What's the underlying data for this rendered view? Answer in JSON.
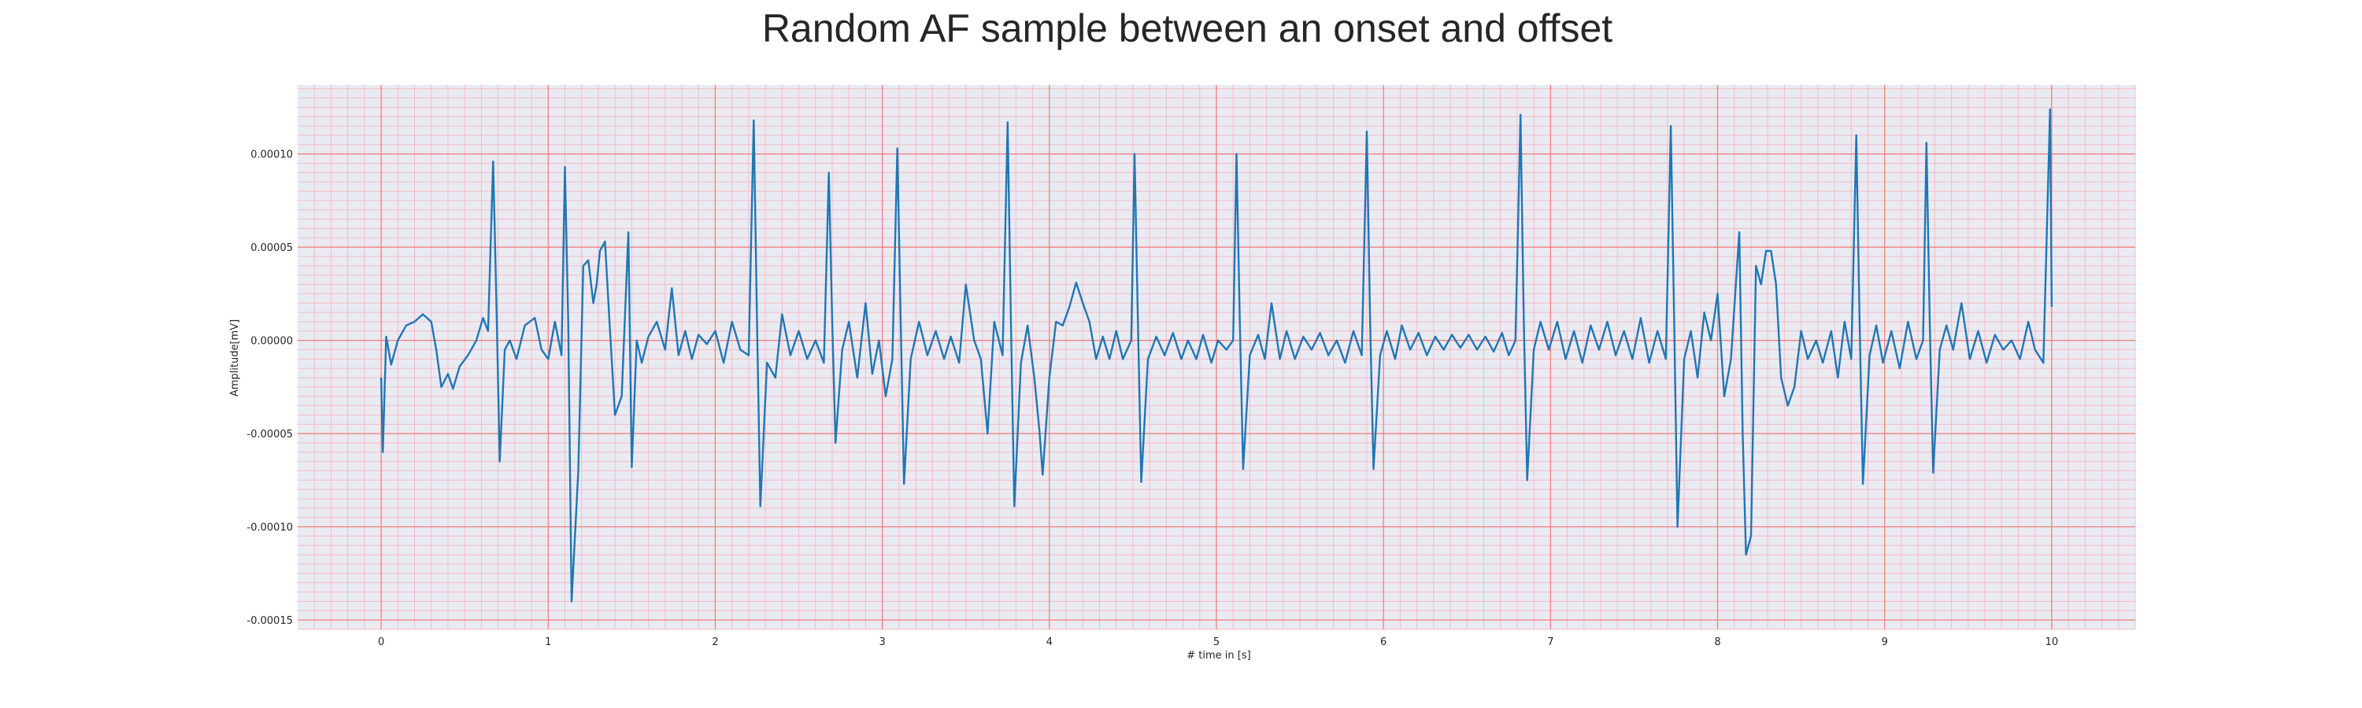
{
  "chart_data": {
    "type": "line",
    "title": "Random AF sample between an onset and offset",
    "xlabel": "# time in [s]",
    "ylabel": "Amplitude[mV]",
    "xlim": [
      -0.5,
      10.5
    ],
    "ylim": [
      -0.000155,
      0.000137
    ],
    "x_ticks": [
      0,
      1,
      2,
      3,
      4,
      5,
      6,
      7,
      8,
      9,
      10
    ],
    "y_ticks": [
      -0.00015,
      -0.0001,
      -5e-05,
      0.0,
      5e-05,
      0.0001
    ],
    "x_tick_labels": [
      "0",
      "1",
      "2",
      "3",
      "4",
      "5",
      "6",
      "7",
      "8",
      "9",
      "10"
    ],
    "y_tick_labels": [
      "-0.00015",
      "-0.00010",
      "-0.00005",
      "0.00000",
      "0.00005",
      "0.00010"
    ],
    "grid": true,
    "colors": {
      "background": "#eaeaf2",
      "major_grid": "#f08080",
      "minor_grid": "#f4bcc6",
      "line": "#1f77b4"
    },
    "series": [
      {
        "points": [
          [
            0.0,
            -2e-05
          ],
          [
            0.01,
            -6e-05
          ],
          [
            0.03,
            2e-06
          ],
          [
            0.06,
            -1.3e-05
          ],
          [
            0.1,
            0.0
          ],
          [
            0.15,
            8e-06
          ],
          [
            0.2,
            1e-05
          ],
          [
            0.25,
            1.4e-05
          ],
          [
            0.3,
            1e-05
          ],
          [
            0.33,
            -5e-06
          ],
          [
            0.36,
            -2.5e-05
          ],
          [
            0.4,
            -1.8e-05
          ],
          [
            0.43,
            -2.6e-05
          ],
          [
            0.47,
            -1.4e-05
          ],
          [
            0.52,
            -8e-06
          ],
          [
            0.57,
            0.0
          ],
          [
            0.61,
            1.2e-05
          ],
          [
            0.64,
            5e-06
          ],
          [
            0.67,
            9.6e-05
          ],
          [
            0.69,
            2e-05
          ],
          [
            0.71,
            -6.5e-05
          ],
          [
            0.74,
            -5e-06
          ],
          [
            0.77,
            0.0
          ],
          [
            0.81,
            -1e-05
          ],
          [
            0.86,
            8e-06
          ],
          [
            0.92,
            1.2e-05
          ],
          [
            0.96,
            -5e-06
          ],
          [
            1.0,
            -1e-05
          ],
          [
            1.04,
            1e-05
          ],
          [
            1.08,
            -8e-06
          ],
          [
            1.1,
            9.3e-05
          ],
          [
            1.12,
            1e-05
          ],
          [
            1.14,
            -0.00014
          ],
          [
            1.18,
            -7e-05
          ],
          [
            1.21,
            4e-05
          ],
          [
            1.24,
            4.3e-05
          ],
          [
            1.27,
            2e-05
          ],
          [
            1.29,
            3e-05
          ],
          [
            1.31,
            4.8e-05
          ],
          [
            1.34,
            5.3e-05
          ],
          [
            1.37,
            5e-06
          ],
          [
            1.4,
            -4e-05
          ],
          [
            1.44,
            -3e-05
          ],
          [
            1.48,
            5.8e-05
          ],
          [
            1.5,
            -6.8e-05
          ],
          [
            1.53,
            0.0
          ],
          [
            1.56,
            -1.2e-05
          ],
          [
            1.6,
            2e-06
          ],
          [
            1.65,
            1e-05
          ],
          [
            1.7,
            -5e-06
          ],
          [
            1.74,
            2.8e-05
          ],
          [
            1.78,
            -8e-06
          ],
          [
            1.82,
            5e-06
          ],
          [
            1.86,
            -1e-05
          ],
          [
            1.9,
            3e-06
          ],
          [
            1.95,
            -2e-06
          ],
          [
            2.0,
            5e-06
          ],
          [
            2.05,
            -1.2e-05
          ],
          [
            2.1,
            1e-05
          ],
          [
            2.15,
            -5e-06
          ],
          [
            2.2,
            -8e-06
          ],
          [
            2.23,
            0.000118
          ],
          [
            2.25,
            1e-05
          ],
          [
            2.27,
            -8.9e-05
          ],
          [
            2.31,
            -1.2e-05
          ],
          [
            2.36,
            -2e-05
          ],
          [
            2.4,
            1.4e-05
          ],
          [
            2.45,
            -8e-06
          ],
          [
            2.5,
            5e-06
          ],
          [
            2.55,
            -1e-05
          ],
          [
            2.6,
            0.0
          ],
          [
            2.65,
            -1.2e-05
          ],
          [
            2.68,
            9e-05
          ],
          [
            2.7,
            1e-05
          ],
          [
            2.72,
            -5.5e-05
          ],
          [
            2.76,
            -5e-06
          ],
          [
            2.8,
            1e-05
          ],
          [
            2.85,
            -2e-05
          ],
          [
            2.9,
            2e-05
          ],
          [
            2.94,
            -1.8e-05
          ],
          [
            2.98,
            0.0
          ],
          [
            3.02,
            -3e-05
          ],
          [
            3.06,
            -1e-05
          ],
          [
            3.09,
            0.000103
          ],
          [
            3.11,
            1e-05
          ],
          [
            3.13,
            -7.7e-05
          ],
          [
            3.17,
            -1e-05
          ],
          [
            3.22,
            1e-05
          ],
          [
            3.27,
            -8e-06
          ],
          [
            3.32,
            5e-06
          ],
          [
            3.37,
            -1e-05
          ],
          [
            3.41,
            2e-06
          ],
          [
            3.46,
            -1.2e-05
          ],
          [
            3.5,
            3e-05
          ],
          [
            3.55,
            0.0
          ],
          [
            3.59,
            -1e-05
          ],
          [
            3.63,
            -5e-05
          ],
          [
            3.67,
            1e-05
          ],
          [
            3.72,
            -8e-06
          ],
          [
            3.75,
            0.000117
          ],
          [
            3.77,
            1e-05
          ],
          [
            3.79,
            -8.9e-05
          ],
          [
            3.83,
            -1.2e-05
          ],
          [
            3.87,
            8e-06
          ],
          [
            3.91,
            -2e-05
          ],
          [
            3.94,
            -4.8e-05
          ],
          [
            3.96,
            -7.2e-05
          ],
          [
            4.0,
            -2e-05
          ],
          [
            4.04,
            1e-05
          ],
          [
            4.08,
            8e-06
          ],
          [
            4.12,
            1.8e-05
          ],
          [
            4.16,
            3.1e-05
          ],
          [
            4.2,
            2e-05
          ],
          [
            4.24,
            1e-05
          ],
          [
            4.28,
            -1e-05
          ],
          [
            4.32,
            2e-06
          ],
          [
            4.36,
            -1e-05
          ],
          [
            4.4,
            5e-06
          ],
          [
            4.44,
            -1e-05
          ],
          [
            4.49,
            0.0
          ],
          [
            4.51,
            0.0001
          ],
          [
            4.53,
            1e-05
          ],
          [
            4.55,
            -7.6e-05
          ],
          [
            4.59,
            -1e-05
          ],
          [
            4.64,
            2e-06
          ],
          [
            4.69,
            -8e-06
          ],
          [
            4.74,
            4e-06
          ],
          [
            4.79,
            -1e-05
          ],
          [
            4.83,
            0.0
          ],
          [
            4.88,
            -1e-05
          ],
          [
            4.92,
            3e-06
          ],
          [
            4.97,
            -1.2e-05
          ],
          [
            5.01,
            0.0
          ],
          [
            5.06,
            -5e-06
          ],
          [
            5.1,
            0.0
          ],
          [
            5.12,
            0.0001
          ],
          [
            5.14,
            1e-05
          ],
          [
            5.16,
            -6.9e-05
          ],
          [
            5.2,
            -8e-06
          ],
          [
            5.25,
            3e-06
          ],
          [
            5.29,
            -1e-05
          ],
          [
            5.33,
            2e-05
          ],
          [
            5.38,
            -1e-05
          ],
          [
            5.42,
            5e-06
          ],
          [
            5.47,
            -1e-05
          ],
          [
            5.52,
            2e-06
          ],
          [
            5.57,
            -5e-06
          ],
          [
            5.62,
            4e-06
          ],
          [
            5.67,
            -8e-06
          ],
          [
            5.72,
            0.0
          ],
          [
            5.77,
            -1.2e-05
          ],
          [
            5.82,
            5e-06
          ],
          [
            5.87,
            -8e-06
          ],
          [
            5.9,
            0.000112
          ],
          [
            5.92,
            1e-05
          ],
          [
            5.94,
            -6.9e-05
          ],
          [
            5.98,
            -8e-06
          ],
          [
            6.02,
            5e-06
          ],
          [
            6.07,
            -1e-05
          ],
          [
            6.11,
            8e-06
          ],
          [
            6.16,
            -5e-06
          ],
          [
            6.21,
            4e-06
          ],
          [
            6.26,
            -8e-06
          ],
          [
            6.31,
            2e-06
          ],
          [
            6.36,
            -5e-06
          ],
          [
            6.41,
            3e-06
          ],
          [
            6.46,
            -4e-06
          ],
          [
            6.51,
            3e-06
          ],
          [
            6.56,
            -5e-06
          ],
          [
            6.61,
            2e-06
          ],
          [
            6.66,
            -6e-06
          ],
          [
            6.71,
            4e-06
          ],
          [
            6.75,
            -8e-06
          ],
          [
            6.79,
            0.0
          ],
          [
            6.82,
            0.000121
          ],
          [
            6.84,
            1e-05
          ],
          [
            6.86,
            -7.5e-05
          ],
          [
            6.9,
            -5e-06
          ],
          [
            6.94,
            1e-05
          ],
          [
            6.99,
            -5e-06
          ],
          [
            7.04,
            1e-05
          ],
          [
            7.09,
            -1e-05
          ],
          [
            7.14,
            5e-06
          ],
          [
            7.19,
            -1.2e-05
          ],
          [
            7.24,
            8e-06
          ],
          [
            7.29,
            -5e-06
          ],
          [
            7.34,
            1e-05
          ],
          [
            7.39,
            -8e-06
          ],
          [
            7.44,
            5e-06
          ],
          [
            7.49,
            -1e-05
          ],
          [
            7.54,
            1.2e-05
          ],
          [
            7.59,
            -1.2e-05
          ],
          [
            7.64,
            5e-06
          ],
          [
            7.69,
            -1e-05
          ],
          [
            7.72,
            0.000115
          ],
          [
            7.74,
            1e-05
          ],
          [
            7.76,
            -0.0001
          ],
          [
            7.8,
            -1e-05
          ],
          [
            7.84,
            5e-06
          ],
          [
            7.88,
            -2e-05
          ],
          [
            7.92,
            1.5e-05
          ],
          [
            7.96,
            0.0
          ],
          [
            8.0,
            2.5e-05
          ],
          [
            8.04,
            -3e-05
          ],
          [
            8.08,
            -1e-05
          ],
          [
            8.13,
            5.8e-05
          ],
          [
            8.15,
            -5e-05
          ],
          [
            8.17,
            -0.000115
          ],
          [
            8.2,
            -0.000105
          ],
          [
            8.23,
            4e-05
          ],
          [
            8.26,
            3e-05
          ],
          [
            8.29,
            4.8e-05
          ],
          [
            8.32,
            4.8e-05
          ],
          [
            8.35,
            3e-05
          ],
          [
            8.38,
            -2e-05
          ],
          [
            8.42,
            -3.5e-05
          ],
          [
            8.46,
            -2.5e-05
          ],
          [
            8.5,
            5e-06
          ],
          [
            8.54,
            -1e-05
          ],
          [
            8.59,
            0.0
          ],
          [
            8.63,
            -1.2e-05
          ],
          [
            8.68,
            5e-06
          ],
          [
            8.72,
            -2e-05
          ],
          [
            8.76,
            1e-05
          ],
          [
            8.8,
            -1e-05
          ],
          [
            8.83,
            0.00011
          ],
          [
            8.85,
            1e-05
          ],
          [
            8.87,
            -7.7e-05
          ],
          [
            8.91,
            -8e-06
          ],
          [
            8.95,
            8e-06
          ],
          [
            8.99,
            -1.2e-05
          ],
          [
            9.04,
            5e-06
          ],
          [
            9.09,
            -1.5e-05
          ],
          [
            9.14,
            1e-05
          ],
          [
            9.19,
            -1e-05
          ],
          [
            9.23,
            0.0
          ],
          [
            9.25,
            0.000106
          ],
          [
            9.27,
            1e-05
          ],
          [
            9.29,
            -7.1e-05
          ],
          [
            9.33,
            -5e-06
          ],
          [
            9.37,
            8e-06
          ],
          [
            9.41,
            -5e-06
          ],
          [
            9.46,
            2e-05
          ],
          [
            9.51,
            -1e-05
          ],
          [
            9.56,
            5e-06
          ],
          [
            9.61,
            -1.2e-05
          ],
          [
            9.66,
            3e-06
          ],
          [
            9.71,
            -5e-06
          ],
          [
            9.76,
            0.0
          ],
          [
            9.81,
            -1e-05
          ],
          [
            9.86,
            1e-05
          ],
          [
            9.9,
            -5e-06
          ],
          [
            9.95,
            -1.2e-05
          ],
          [
            9.99,
            0.000124
          ],
          [
            10.0,
            1.8e-05
          ]
        ]
      }
    ]
  }
}
